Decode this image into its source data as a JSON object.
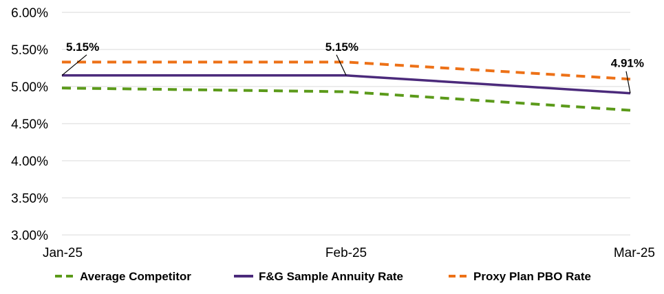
{
  "chart_data": {
    "type": "line",
    "title": "",
    "xlabel": "",
    "ylabel": "",
    "categories": [
      "Jan-25",
      "Feb-25",
      "Mar-25"
    ],
    "ylim": [
      3.0,
      6.0
    ],
    "y_ticks": [
      "3.00%",
      "3.50%",
      "4.00%",
      "4.50%",
      "5.00%",
      "5.50%",
      "6.00%"
    ],
    "grid": true,
    "legend_position": "bottom",
    "series": [
      {
        "name": "Average Competitor",
        "values": [
          4.98,
          4.93,
          4.68
        ],
        "color": "#5b9a1a",
        "style": "dashed"
      },
      {
        "name": "F&G Sample Annuity Rate",
        "values": [
          5.15,
          5.15,
          4.91
        ],
        "color": "#4b2a7b",
        "style": "solid"
      },
      {
        "name": "Proxy Plan PBO Rate",
        "values": [
          5.33,
          5.33,
          5.1
        ],
        "color": "#ed7117",
        "style": "dashed"
      }
    ],
    "data_labels": [
      {
        "series": 1,
        "index": 0,
        "text": "5.15%"
      },
      {
        "series": 1,
        "index": 1,
        "text": "5.15%"
      },
      {
        "series": 1,
        "index": 2,
        "text": "4.91%"
      }
    ]
  }
}
